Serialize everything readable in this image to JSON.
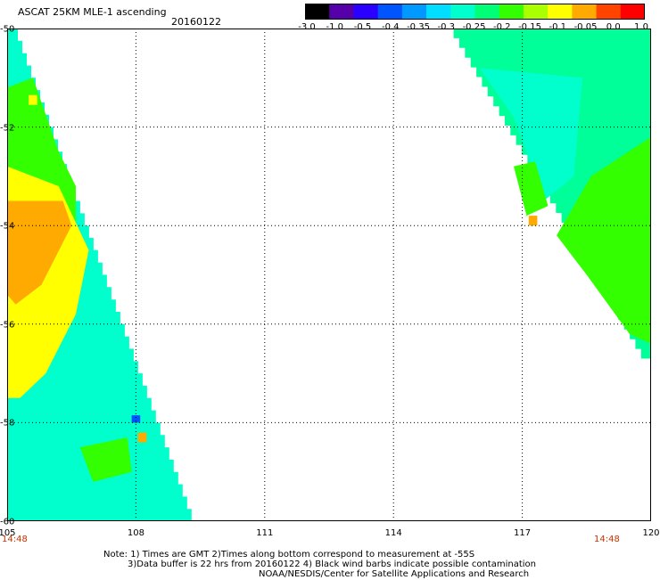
{
  "header": {
    "title": "ASCAT 25KM MLE-1 ascending",
    "date": "20160122"
  },
  "colorbar": {
    "labels": [
      "-3.0",
      "-1.0",
      "-0.5",
      "-0.4",
      "-0.35",
      "-0.3",
      "-0.25",
      "-0.2",
      "-0.15",
      "-0.1",
      "-0.05",
      "0.0",
      "1.0"
    ],
    "colors": [
      "#000000",
      "#5500a8",
      "#2a00ff",
      "#0055ff",
      "#0099ff",
      "#00ddff",
      "#00ffcc",
      "#00ff77",
      "#33ff00",
      "#aaff00",
      "#ffff00",
      "#ffaa00",
      "#ff4400",
      "#ff0000"
    ]
  },
  "map": {
    "lon_range": [
      105,
      120
    ],
    "lat_range": [
      -50,
      -60
    ],
    "lat_labels": [
      "-50",
      "-52",
      "-54",
      "-56",
      "-58",
      "-60"
    ],
    "lon_labels": [
      "105",
      "108",
      "111",
      "114",
      "117",
      "120"
    ],
    "time_left": "14:48",
    "time_right": "14:48",
    "colors": {
      "yellow": "#ffff00",
      "orange": "#ffaa00",
      "green": "#33ff00",
      "cyan": "#00ffcc",
      "seafoam": "#00ff99",
      "blue": "#0055ff",
      "time_text": "#c83200"
    }
  },
  "notes": {
    "line1": "Note: 1) Times are GMT 2)Times along bottom correspond to measurement at -55S",
    "line2": "3)Data buffer is 22 hrs from 20160122 4) Black wind barbs indicate possible contamination",
    "line3": "NOAA/NESDIS/Center for Satellite Applications and Research"
  }
}
